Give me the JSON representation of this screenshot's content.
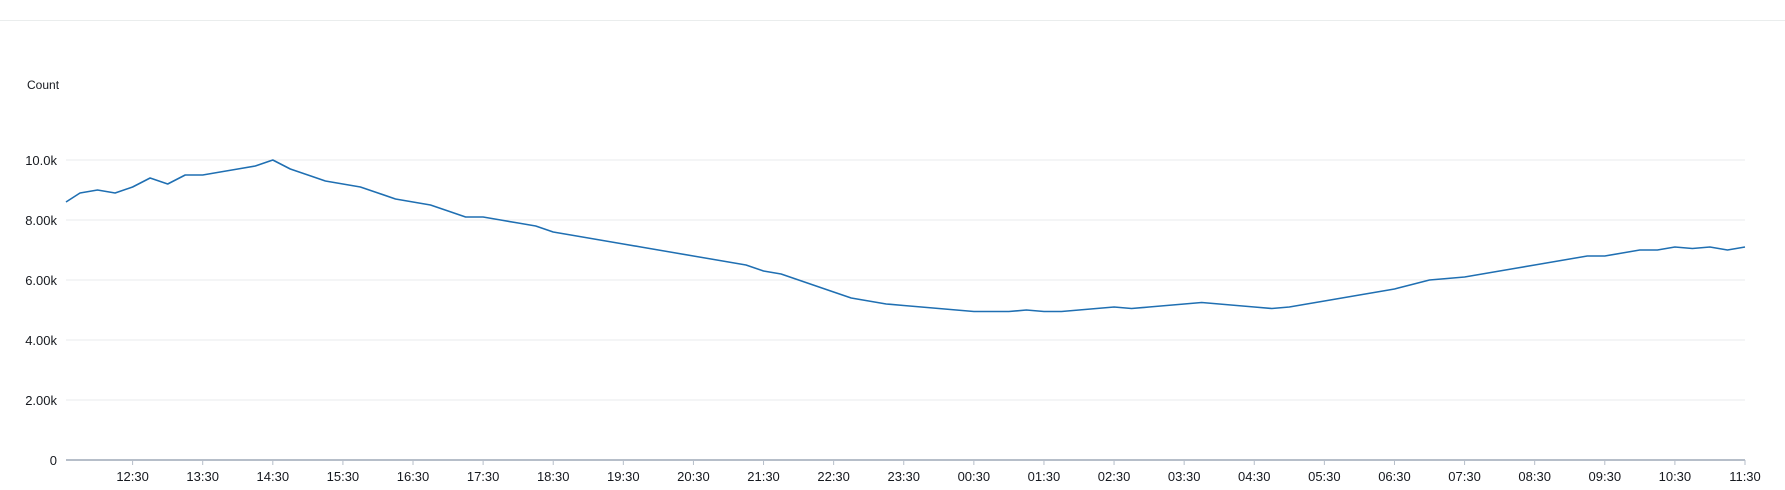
{
  "chart_data": {
    "type": "line",
    "title": "",
    "xlabel": "",
    "ylabel": "Count",
    "ylim": [
      0,
      12000
    ],
    "y_ticks": [
      {
        "value": 0,
        "label": "0"
      },
      {
        "value": 2000,
        "label": "2.00k"
      },
      {
        "value": 4000,
        "label": "4.00k"
      },
      {
        "value": 6000,
        "label": "6.00k"
      },
      {
        "value": 8000,
        "label": "8.00k"
      },
      {
        "value": 10000,
        "label": "10.0k"
      }
    ],
    "x_ticks": [
      "12:30",
      "13:30",
      "14:30",
      "15:30",
      "16:30",
      "17:30",
      "18:30",
      "19:30",
      "20:30",
      "21:30",
      "22:30",
      "23:30",
      "00:30",
      "01:30",
      "02:30",
      "03:30",
      "04:30",
      "05:30",
      "06:30",
      "07:30",
      "08:30",
      "09:30",
      "10:30",
      "11:30"
    ],
    "x_range": [
      "11:33",
      "11:30"
    ],
    "grid": true,
    "legend": "none",
    "colors": {
      "series": "#1f6fb2",
      "grid": "#e9ebed",
      "axis": "#b6bec9",
      "text": "#16191f"
    },
    "series": [
      {
        "x": [
          "11:33",
          "11:45",
          "12:00",
          "12:15",
          "12:30",
          "12:45",
          "13:00",
          "13:15",
          "13:30",
          "13:45",
          "14:00",
          "14:15",
          "14:30",
          "14:45",
          "15:00",
          "15:15",
          "15:30",
          "15:45",
          "16:00",
          "16:15",
          "16:30",
          "16:45",
          "17:00",
          "17:15",
          "17:30",
          "17:45",
          "18:00",
          "18:15",
          "18:30",
          "18:45",
          "19:00",
          "19:15",
          "19:30",
          "19:45",
          "20:00",
          "20:15",
          "20:30",
          "20:45",
          "21:00",
          "21:15",
          "21:30",
          "21:45",
          "22:00",
          "22:15",
          "22:30",
          "22:45",
          "23:00",
          "23:15",
          "23:30",
          "23:45",
          "00:00",
          "00:15",
          "00:30",
          "00:45",
          "01:00",
          "01:15",
          "01:30",
          "01:45",
          "02:00",
          "02:15",
          "02:30",
          "02:45",
          "03:00",
          "03:15",
          "03:30",
          "03:45",
          "04:00",
          "04:15",
          "04:30",
          "04:45",
          "05:00",
          "05:15",
          "05:30",
          "05:45",
          "06:00",
          "06:15",
          "06:30",
          "06:45",
          "07:00",
          "07:15",
          "07:30",
          "07:45",
          "08:00",
          "08:15",
          "08:30",
          "08:45",
          "09:00",
          "09:15",
          "09:30",
          "09:45",
          "10:00",
          "10:15",
          "10:30",
          "10:45",
          "11:00",
          "11:15",
          "11:30"
        ],
        "values": [
          8600,
          8900,
          9000,
          8900,
          9100,
          9400,
          9200,
          9500,
          9500,
          9600,
          9700,
          9800,
          10000,
          9700,
          9500,
          9300,
          9200,
          9100,
          8900,
          8700,
          8600,
          8500,
          8300,
          8100,
          8100,
          8000,
          7900,
          7800,
          7600,
          7500,
          7400,
          7300,
          7200,
          7100,
          7000,
          6900,
          6800,
          6700,
          6600,
          6500,
          6300,
          6200,
          6000,
          5800,
          5600,
          5400,
          5300,
          5200,
          5150,
          5100,
          5050,
          5000,
          4950,
          4950,
          4950,
          5000,
          4950,
          4950,
          5000,
          5050,
          5100,
          5050,
          5100,
          5150,
          5200,
          5250,
          5200,
          5150,
          5100,
          5050,
          5100,
          5200,
          5300,
          5400,
          5500,
          5600,
          5700,
          5850,
          6000,
          6050,
          6100,
          6200,
          6300,
          6400,
          6500,
          6600,
          6700,
          6800,
          6800,
          6900,
          7000,
          7000,
          7100,
          7050,
          7100,
          7000,
          7100
        ]
      }
    ]
  }
}
